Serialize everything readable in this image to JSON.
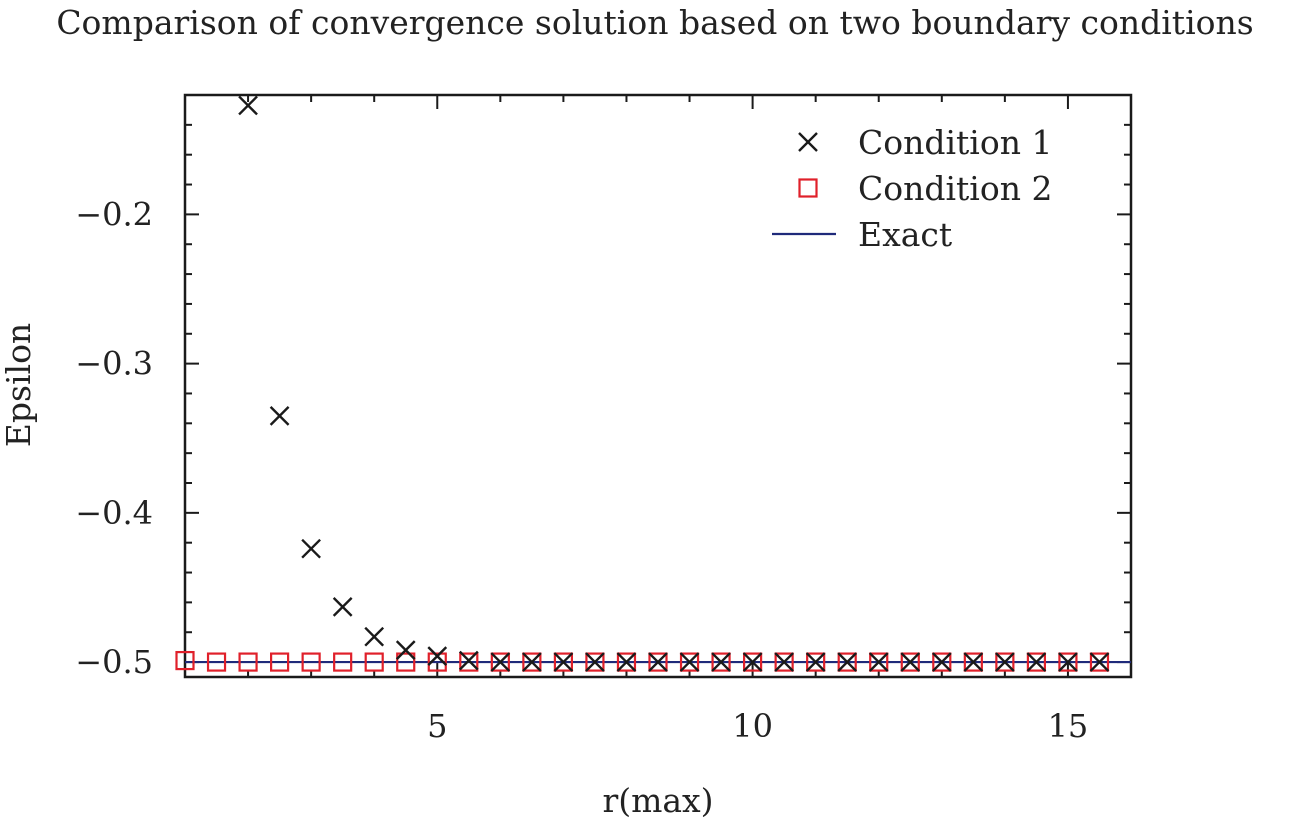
{
  "chart_data": {
    "type": "scatter",
    "title": "Comparison of convergence solution based on two boundary conditions",
    "xlabel": "r(max)",
    "ylabel": "Epsilon",
    "xlim": [
      1,
      16
    ],
    "ylim": [
      -0.51,
      -0.12
    ],
    "xticks": [
      5,
      10,
      15
    ],
    "xtick_labels": [
      "5",
      "10",
      "15"
    ],
    "yticks": [
      -0.2,
      -0.3,
      -0.4,
      -0.5
    ],
    "ytick_labels": [
      "−0.2",
      "−0.3",
      "−0.4",
      "−0.5"
    ],
    "grid": false,
    "legend_position": "top-right",
    "series": [
      {
        "name": "Condition 1",
        "marker": "x",
        "color": "#1a1a1a",
        "x": [
          2.0,
          2.5,
          3.0,
          3.5,
          4.0,
          4.5,
          5.0,
          5.5,
          6.0,
          6.5,
          7.0,
          7.5,
          8.0,
          8.5,
          9.0,
          9.5,
          10.0,
          10.5,
          11.0,
          11.5,
          12.0,
          12.5,
          13.0,
          13.5,
          14.0,
          14.5,
          15.0,
          15.5
        ],
        "y": [
          -0.127,
          -0.335,
          -0.424,
          -0.463,
          -0.483,
          -0.492,
          -0.496,
          -0.499,
          -0.5,
          -0.5,
          -0.5,
          -0.5,
          -0.5,
          -0.5,
          -0.5,
          -0.5,
          -0.5,
          -0.5,
          -0.5,
          -0.5,
          -0.5,
          -0.5,
          -0.5,
          -0.5,
          -0.5,
          -0.5,
          -0.5,
          -0.5
        ]
      },
      {
        "name": "Condition 2",
        "marker": "square",
        "color": "#e0202a",
        "x": [
          1.0,
          1.5,
          2.0,
          2.5,
          3.0,
          3.5,
          4.0,
          4.5,
          5.0,
          5.5,
          6.0,
          6.5,
          7.0,
          7.5,
          8.0,
          8.5,
          9.0,
          9.5,
          10.0,
          10.5,
          11.0,
          11.5,
          12.0,
          12.5,
          13.0,
          13.5,
          14.0,
          14.5,
          15.0,
          15.5
        ],
        "y": [
          -0.499,
          -0.5,
          -0.5,
          -0.5,
          -0.5,
          -0.5,
          -0.5,
          -0.5,
          -0.5,
          -0.5,
          -0.5,
          -0.5,
          -0.5,
          -0.5,
          -0.5,
          -0.5,
          -0.5,
          -0.5,
          -0.5,
          -0.5,
          -0.5,
          -0.5,
          -0.5,
          -0.5,
          -0.5,
          -0.5,
          -0.5,
          -0.5,
          -0.5,
          -0.5
        ]
      },
      {
        "name": "Exact",
        "marker": "line",
        "color": "#1f2a7a",
        "x": [
          1.0,
          16.0
        ],
        "y": [
          -0.5,
          -0.5
        ]
      }
    ]
  }
}
